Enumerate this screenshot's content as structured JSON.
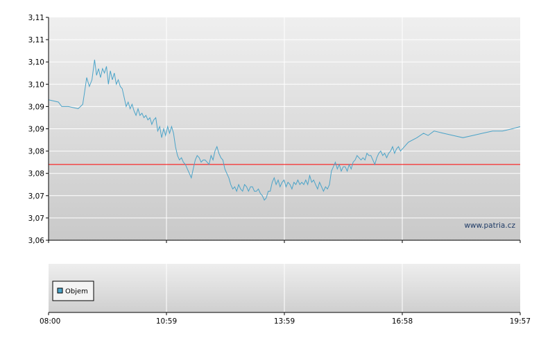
{
  "chart_data": [
    {
      "type": "line",
      "title": "",
      "xlabel": "",
      "ylabel": "",
      "x_ticks": [
        "08:00",
        "10:59",
        "13:59",
        "16:58",
        "19:57"
      ],
      "y_ticks": [
        "3,06",
        "3,07",
        "3,07",
        "3,08",
        "3,08",
        "3,09",
        "3,09",
        "3,10",
        "3,10",
        "3,11",
        "3,11"
      ],
      "ylim": [
        3.06,
        3.11
      ],
      "xlim_minutes": [
        0,
        717
      ],
      "reference_line": {
        "value": 3.077,
        "color": "#ff0000"
      },
      "grid": true,
      "watermark": "www.patria.cz",
      "series": [
        {
          "color": "#4aa3c8",
          "points": [
            [
              0,
              3.0915
            ],
            [
              15,
              3.091
            ],
            [
              20,
              3.09
            ],
            [
              30,
              3.09
            ],
            [
              45,
              3.0895
            ],
            [
              52,
              3.0905
            ],
            [
              55,
              3.0935
            ],
            [
              58,
              3.0965
            ],
            [
              62,
              3.0945
            ],
            [
              66,
              3.096
            ],
            [
              70,
              3.1005
            ],
            [
              73,
              3.097
            ],
            [
              76,
              3.0985
            ],
            [
              79,
              3.0965
            ],
            [
              82,
              3.0985
            ],
            [
              85,
              3.0975
            ],
            [
              88,
              3.099
            ],
            [
              91,
              3.095
            ],
            [
              94,
              3.098
            ],
            [
              97,
              3.096
            ],
            [
              100,
              3.0975
            ],
            [
              103,
              3.095
            ],
            [
              106,
              3.096
            ],
            [
              109,
              3.0945
            ],
            [
              112,
              3.094
            ],
            [
              115,
              3.092
            ],
            [
              118,
              3.09
            ],
            [
              121,
              3.091
            ],
            [
              124,
              3.0895
            ],
            [
              127,
              3.0905
            ],
            [
              130,
              3.089
            ],
            [
              133,
              3.088
            ],
            [
              136,
              3.0895
            ],
            [
              139,
              3.088
            ],
            [
              142,
              3.0885
            ],
            [
              145,
              3.0875
            ],
            [
              148,
              3.088
            ],
            [
              151,
              3.087
            ],
            [
              154,
              3.0875
            ],
            [
              157,
              3.086
            ],
            [
              160,
              3.087
            ],
            [
              163,
              3.0875
            ],
            [
              166,
              3.0845
            ],
            [
              169,
              3.0855
            ],
            [
              172,
              3.083
            ],
            [
              175,
              3.085
            ],
            [
              178,
              3.0835
            ],
            [
              181,
              3.0855
            ],
            [
              184,
              3.084
            ],
            [
              187,
              3.0855
            ],
            [
              190,
              3.084
            ],
            [
              193,
              3.081
            ],
            [
              196,
              3.079
            ],
            [
              199,
              3.078
            ],
            [
              202,
              3.0785
            ],
            [
              205,
              3.0775
            ],
            [
              208,
              3.077
            ],
            [
              211,
              3.076
            ],
            [
              214,
              3.075
            ],
            [
              217,
              3.074
            ],
            [
              220,
              3.076
            ],
            [
              223,
              3.078
            ],
            [
              226,
              3.079
            ],
            [
              229,
              3.0785
            ],
            [
              232,
              3.0775
            ],
            [
              235,
              3.078
            ],
            [
              238,
              3.078
            ],
            [
              241,
              3.0775
            ],
            [
              244,
              3.077
            ],
            [
              247,
              3.079
            ],
            [
              250,
              3.078
            ],
            [
              253,
              3.08
            ],
            [
              256,
              3.081
            ],
            [
              259,
              3.0795
            ],
            [
              262,
              3.0785
            ],
            [
              265,
              3.078
            ],
            [
              268,
              3.076
            ],
            [
              271,
              3.075
            ],
            [
              274,
              3.074
            ],
            [
              277,
              3.0725
            ],
            [
              280,
              3.0715
            ],
            [
              283,
              3.072
            ],
            [
              286,
              3.071
            ],
            [
              289,
              3.0725
            ],
            [
              292,
              3.0715
            ],
            [
              295,
              3.071
            ],
            [
              298,
              3.0725
            ],
            [
              301,
              3.072
            ],
            [
              304,
              3.071
            ],
            [
              307,
              3.072
            ],
            [
              310,
              3.072
            ],
            [
              313,
              3.071
            ],
            [
              316,
              3.071
            ],
            [
              319,
              3.0715
            ],
            [
              322,
              3.0705
            ],
            [
              325,
              3.07
            ],
            [
              328,
              3.069
            ],
            [
              331,
              3.0695
            ],
            [
              334,
              3.071
            ],
            [
              337,
              3.071
            ],
            [
              340,
              3.073
            ],
            [
              343,
              3.074
            ],
            [
              346,
              3.0725
            ],
            [
              349,
              3.0735
            ],
            [
              352,
              3.072
            ],
            [
              355,
              3.073
            ],
            [
              358,
              3.0735
            ],
            [
              361,
              3.072
            ],
            [
              364,
              3.073
            ],
            [
              367,
              3.0725
            ],
            [
              370,
              3.0715
            ],
            [
              373,
              3.073
            ],
            [
              376,
              3.0725
            ],
            [
              379,
              3.0735
            ],
            [
              382,
              3.0725
            ],
            [
              385,
              3.073
            ],
            [
              388,
              3.0725
            ],
            [
              391,
              3.0735
            ],
            [
              394,
              3.0725
            ],
            [
              397,
              3.0745
            ],
            [
              400,
              3.073
            ],
            [
              403,
              3.0735
            ],
            [
              406,
              3.0725
            ],
            [
              409,
              3.0715
            ],
            [
              412,
              3.073
            ],
            [
              415,
              3.072
            ],
            [
              418,
              3.071
            ],
            [
              421,
              3.072
            ],
            [
              424,
              3.0715
            ],
            [
              427,
              3.0725
            ],
            [
              430,
              3.0755
            ],
            [
              433,
              3.0765
            ],
            [
              436,
              3.0775
            ],
            [
              439,
              3.076
            ],
            [
              442,
              3.077
            ],
            [
              445,
              3.0755
            ],
            [
              448,
              3.0765
            ],
            [
              451,
              3.0765
            ],
            [
              454,
              3.0755
            ],
            [
              457,
              3.077
            ],
            [
              460,
              3.076
            ],
            [
              463,
              3.0775
            ],
            [
              466,
              3.078
            ],
            [
              469,
              3.079
            ],
            [
              472,
              3.0785
            ],
            [
              475,
              3.078
            ],
            [
              478,
              3.0785
            ],
            [
              481,
              3.078
            ],
            [
              484,
              3.0795
            ],
            [
              487,
              3.079
            ],
            [
              490,
              3.079
            ],
            [
              493,
              3.078
            ],
            [
              496,
              3.077
            ],
            [
              499,
              3.0785
            ],
            [
              502,
              3.0795
            ],
            [
              505,
              3.08
            ],
            [
              508,
              3.079
            ],
            [
              511,
              3.0795
            ],
            [
              514,
              3.0785
            ],
            [
              517,
              3.0795
            ],
            [
              520,
              3.08
            ],
            [
              523,
              3.081
            ],
            [
              526,
              3.0795
            ],
            [
              529,
              3.0805
            ],
            [
              532,
              3.081
            ],
            [
              535,
              3.08
            ],
            [
              538,
              3.0805
            ],
            [
              541,
              3.081
            ],
            [
              544,
              3.0815
            ],
            [
              547,
              3.082
            ],
            [
              560,
              3.083
            ],
            [
              570,
              3.084
            ],
            [
              577,
              3.0835
            ],
            [
              586,
              3.0845
            ],
            [
              600,
              3.084
            ],
            [
              615,
              3.0835
            ],
            [
              630,
              3.083
            ],
            [
              645,
              3.0835
            ],
            [
              660,
              3.084
            ],
            [
              675,
              3.0845
            ],
            [
              690,
              3.0845
            ],
            [
              705,
              3.085
            ],
            [
              717,
              3.0855
            ]
          ]
        }
      ]
    },
    {
      "type": "bar",
      "title": "",
      "series": [
        {
          "name": "Objem",
          "color": "#4aa3c8",
          "values": []
        }
      ],
      "legend_position": "bottom-left"
    }
  ],
  "colors": {
    "plot_bg_top": "#efefef",
    "plot_bg_bottom": "#c9c9c9",
    "grid": "#ffffff",
    "line": "#4aa3c8",
    "reference": "#ff0000"
  }
}
